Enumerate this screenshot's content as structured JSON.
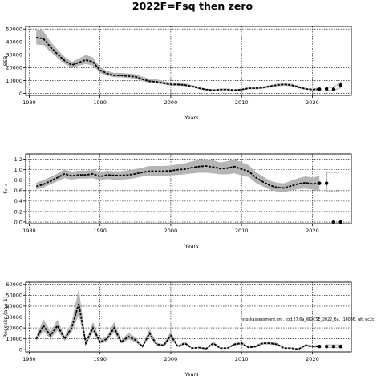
{
  "figure": {
    "title": "2022F=Fsq then zero",
    "watermark": "stockassessment.org, cod.27.6a_WGCSE_2022_6a, r16086, git: ec2c"
  },
  "colors": {
    "band": "#b5b5b5",
    "estimate": "#000000",
    "grid": "#000000",
    "point": "#000000"
  },
  "chart_data": [
    {
      "type": "line",
      "id": "ssb",
      "ylabel": "SSB",
      "xlabel": "Years",
      "xlim": [
        1979.5,
        2025.5
      ],
      "ylim": [
        -1500,
        52000
      ],
      "xticks": [
        1980,
        1990,
        2000,
        2010,
        2020
      ],
      "yticks": [
        0,
        10000,
        20000,
        30000,
        40000,
        50000
      ],
      "grid": true,
      "x": [
        1981,
        1982,
        1983,
        1984,
        1985,
        1986,
        1987,
        1988,
        1989,
        1990,
        1991,
        1992,
        1993,
        1994,
        1995,
        1996,
        1997,
        1998,
        1999,
        2000,
        2001,
        2002,
        2003,
        2004,
        2005,
        2006,
        2007,
        2008,
        2009,
        2010,
        2011,
        2012,
        2013,
        2014,
        2015,
        2016,
        2017,
        2018,
        2019,
        2020,
        2021
      ],
      "estimate": [
        43500,
        42500,
        36000,
        30500,
        25500,
        22000,
        24000,
        26000,
        24500,
        18000,
        15500,
        14000,
        14000,
        13500,
        13000,
        11000,
        9500,
        9000,
        8000,
        7000,
        7000,
        6500,
        5500,
        4000,
        3000,
        2500,
        3000,
        3000,
        2500,
        3000,
        4000,
        4000,
        4500,
        5500,
        6500,
        7000,
        6500,
        5000,
        3500,
        3000,
        3300
      ],
      "lower": [
        38000,
        37500,
        32500,
        27500,
        23000,
        20000,
        21500,
        23000,
        21500,
        16000,
        14000,
        12500,
        12500,
        12000,
        11500,
        9500,
        8300,
        7800,
        7000,
        6000,
        6000,
        5600,
        4700,
        3300,
        2400,
        2000,
        2400,
        2400,
        2000,
        2400,
        3300,
        3300,
        3700,
        4600,
        5500,
        6000,
        5500,
        4200,
        2900,
        2400,
        2400
      ],
      "upper": [
        50000,
        48500,
        40000,
        34000,
        28500,
        24500,
        27000,
        30000,
        28000,
        20500,
        17500,
        16000,
        16000,
        15500,
        15000,
        13000,
        11500,
        11000,
        9500,
        8500,
        8500,
        7800,
        6700,
        5200,
        3800,
        3200,
        3800,
        3800,
        3200,
        3800,
        4800,
        4800,
        5400,
        6500,
        7700,
        8200,
        7700,
        6000,
        4300,
        3800,
        4600
      ],
      "projection": {
        "x": [
          2022,
          2023,
          2024
        ],
        "estimate": [
          3500,
          3300,
          6500
        ],
        "lower": [
          2500,
          2300,
          4500
        ],
        "upper": [
          4800,
          4600,
          8800
        ]
      },
      "projection_points": {
        "x": [
          2021,
          2022,
          2023,
          2024
        ],
        "y": [
          3300,
          3500,
          3300,
          6500
        ]
      }
    },
    {
      "type": "line",
      "id": "f",
      "ylabel": "F₂₋₅",
      "xlabel": "Years",
      "xlim": [
        1979.5,
        2025.5
      ],
      "ylim": [
        -0.03,
        1.3
      ],
      "xticks": [
        1980,
        1990,
        2000,
        2010,
        2020
      ],
      "yticks": [
        0.0,
        0.2,
        0.4,
        0.6,
        0.8,
        1.0,
        1.2
      ],
      "ytick_labels": [
        "0.0",
        "0.2",
        "0.4",
        "0.6",
        "0.8",
        "1.0",
        "1.2"
      ],
      "grid": true,
      "x": [
        1981,
        1982,
        1983,
        1984,
        1985,
        1986,
        1987,
        1988,
        1989,
        1990,
        1991,
        1992,
        1993,
        1994,
        1995,
        1996,
        1997,
        1998,
        1999,
        2000,
        2001,
        2002,
        2003,
        2004,
        2005,
        2006,
        2007,
        2008,
        2009,
        2010,
        2011,
        2012,
        2013,
        2014,
        2015,
        2016,
        2017,
        2018,
        2019,
        2020,
        2021
      ],
      "estimate": [
        0.68,
        0.72,
        0.78,
        0.85,
        0.92,
        0.88,
        0.9,
        0.9,
        0.92,
        0.87,
        0.9,
        0.89,
        0.89,
        0.9,
        0.92,
        0.95,
        0.97,
        0.97,
        0.97,
        0.98,
        1.0,
        1.01,
        1.04,
        1.06,
        1.07,
        1.05,
        1.02,
        1.03,
        1.06,
        1.01,
        0.97,
        0.85,
        0.77,
        0.7,
        0.66,
        0.65,
        0.69,
        0.73,
        0.75,
        0.73,
        0.74
      ],
      "lower": [
        0.62,
        0.66,
        0.72,
        0.78,
        0.84,
        0.81,
        0.83,
        0.83,
        0.84,
        0.8,
        0.82,
        0.81,
        0.81,
        0.82,
        0.84,
        0.87,
        0.88,
        0.88,
        0.88,
        0.89,
        0.9,
        0.91,
        0.93,
        0.94,
        0.94,
        0.93,
        0.91,
        0.91,
        0.93,
        0.89,
        0.86,
        0.75,
        0.68,
        0.62,
        0.58,
        0.57,
        0.6,
        0.63,
        0.64,
        0.62,
        0.6
      ],
      "upper": [
        0.75,
        0.8,
        0.86,
        0.93,
        1.01,
        0.96,
        0.98,
        0.98,
        1.0,
        0.95,
        0.98,
        0.97,
        0.97,
        0.99,
        1.01,
        1.04,
        1.07,
        1.07,
        1.07,
        1.08,
        1.1,
        1.12,
        1.16,
        1.19,
        1.2,
        1.18,
        1.14,
        1.16,
        1.2,
        1.14,
        1.09,
        0.96,
        0.87,
        0.79,
        0.75,
        0.74,
        0.79,
        0.84,
        0.87,
        0.85,
        0.88
      ],
      "projection": {
        "x": [
          2022
        ],
        "estimate": [
          0.74
        ],
        "lower": [
          0.58
        ],
        "upper": [
          0.95
        ]
      },
      "projection_points": {
        "x": [
          2021,
          2022,
          2023,
          2024
        ],
        "y": [
          0.74,
          0.74,
          0.0,
          0.0
        ]
      }
    },
    {
      "type": "line",
      "id": "recruits",
      "ylabel": "Recruits (age 1)",
      "xlabel": "Years",
      "xlim": [
        1979.5,
        2025.5
      ],
      "ylim": [
        -2000,
        62000
      ],
      "xticks": [
        1980,
        1990,
        2000,
        2010,
        2020
      ],
      "yticks": [
        0,
        10000,
        20000,
        30000,
        40000,
        50000,
        60000
      ],
      "grid": true,
      "x": [
        1981,
        1982,
        1983,
        1984,
        1985,
        1986,
        1987,
        1988,
        1989,
        1990,
        1991,
        1992,
        1993,
        1994,
        1995,
        1996,
        1997,
        1998,
        1999,
        2000,
        2001,
        2002,
        2003,
        2004,
        2005,
        2006,
        2007,
        2008,
        2009,
        2010,
        2011,
        2012,
        2013,
        2014,
        2015,
        2016,
        2017,
        2018,
        2019,
        2020,
        2021
      ],
      "estimate": [
        10000,
        22000,
        13000,
        22000,
        10000,
        20000,
        42000,
        6000,
        20000,
        7000,
        10000,
        20000,
        7000,
        12000,
        9000,
        3000,
        15000,
        5000,
        4000,
        13000,
        3000,
        6000,
        1500,
        2000,
        1000,
        6000,
        1500,
        1500,
        5000,
        6000,
        2000,
        3000,
        6000,
        6000,
        5000,
        1500,
        1500,
        500,
        4000,
        3000,
        3000
      ],
      "lower": [
        8000,
        17000,
        10000,
        17500,
        8000,
        16000,
        32000,
        4500,
        16000,
        5500,
        8000,
        16000,
        5500,
        9500,
        7000,
        2300,
        12000,
        4000,
        3100,
        10000,
        2300,
        4800,
        1100,
        1500,
        800,
        4800,
        1100,
        1100,
        4000,
        4800,
        1500,
        2300,
        4800,
        4800,
        4000,
        1100,
        1100,
        300,
        3000,
        2200,
        2000
      ],
      "upper": [
        12500,
        28000,
        17000,
        27500,
        12500,
        25500,
        56000,
        8000,
        25500,
        9000,
        12500,
        25500,
        9000,
        15500,
        11500,
        4000,
        19000,
        6500,
        5200,
        17000,
        4000,
        7600,
        2000,
        2700,
        1300,
        7600,
        2000,
        2000,
        6300,
        7600,
        2700,
        4000,
        7600,
        7600,
        6300,
        2000,
        2000,
        800,
        5300,
        4000,
        4500
      ],
      "projection": {
        "x": [
          2022,
          2023,
          2024
        ],
        "estimate": [
          3000,
          3000,
          3000
        ],
        "lower": [
          2000,
          2000,
          2000
        ],
        "upper": [
          4500,
          4500,
          4500
        ]
      },
      "projection_points": {
        "x": [
          2021,
          2022,
          2023,
          2024
        ],
        "y": [
          3000,
          3000,
          3000,
          3000
        ]
      }
    }
  ]
}
